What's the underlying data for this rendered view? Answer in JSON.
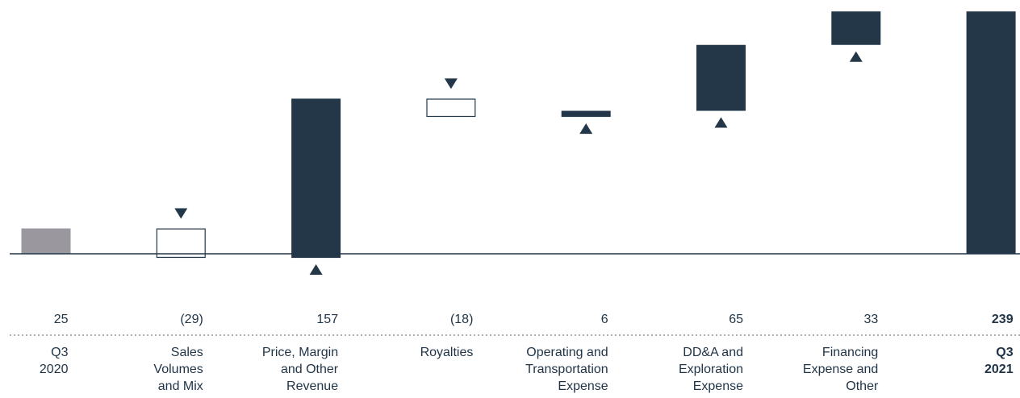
{
  "chart_data": {
    "type": "waterfall",
    "categories": [
      [
        "Q3",
        "2020"
      ],
      [
        "Sales",
        "Volumes",
        "and Mix"
      ],
      [
        "Price, Margin",
        "and Other",
        "Revenue"
      ],
      [
        "Royalties"
      ],
      [
        "Operating and",
        "Transportation",
        "Expense"
      ],
      [
        "DD&A and",
        "Exploration",
        "Expense"
      ],
      [
        "Financing",
        "Expense and",
        "Other"
      ],
      [
        "Q3",
        "2021"
      ]
    ],
    "values": [
      25,
      -29,
      157,
      -18,
      6,
      65,
      33,
      239
    ],
    "value_labels": [
      "25",
      "(29)",
      "157",
      "(18)",
      "6",
      "65",
      "33",
      "239"
    ],
    "kinds": [
      "total",
      "delta",
      "delta",
      "delta",
      "delta",
      "delta",
      "delta",
      "total"
    ],
    "bold": [
      false,
      false,
      false,
      false,
      false,
      false,
      false,
      true
    ],
    "arrows": [
      "none",
      "down",
      "up",
      "down",
      "up",
      "up",
      "up",
      "none"
    ],
    "ylim": [
      -5,
      239
    ],
    "colors": {
      "start_total": "#9b979f",
      "increase": "#233748",
      "decrease_fill": "#ffffff",
      "decrease_stroke": "#233748",
      "end_total": "#233748",
      "axis": "#233748",
      "text": "#1f3447",
      "separator": "#7f7f7f"
    }
  }
}
